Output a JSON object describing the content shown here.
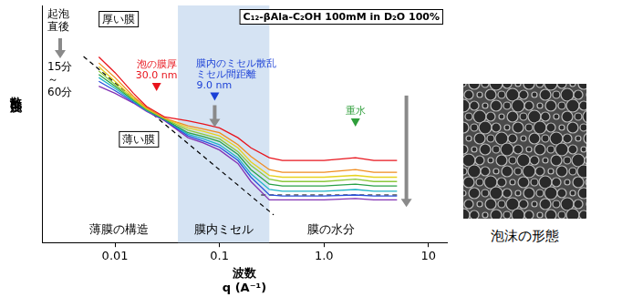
{
  "chart_data": {
    "type": "line",
    "title": "C₁₂-βAla-C₂OH 100mM in D₂O 100%",
    "xlabel": [
      "波数",
      "q (A⁻¹)"
    ],
    "ylabel": "散乱強度",
    "log": true,
    "grid": false,
    "tick_labels": "x",
    "xlim": [
      0.002,
      15
    ],
    "ylim": [
      0.001,
      1000
    ],
    "xticks": [
      0.01,
      0.1,
      {
        "value": 1,
        "label": "1.0"
      },
      10
    ],
    "x": [
      0.007,
      0.01,
      0.015,
      0.02,
      0.03,
      0.05,
      0.07,
      0.1,
      0.15,
      0.2,
      0.3,
      0.4,
      0.6,
      1,
      2,
      3,
      5
    ],
    "series": [
      {
        "color": "#e8141c",
        "values": [
          50,
          20,
          6,
          2.8,
          1.5,
          1.2,
          1.0,
          0.8,
          0.45,
          0.25,
          0.14,
          0.12,
          0.12,
          0.12,
          0.14,
          0.12,
          0.12
        ]
      },
      {
        "color": "#f08c1e",
        "values": [
          35,
          15,
          5,
          2.6,
          1.4,
          0.9,
          0.75,
          0.6,
          0.3,
          0.15,
          0.07,
          0.06,
          0.06,
          0.06,
          0.07,
          0.06,
          0.06
        ]
      },
      {
        "color": "#e6d21e",
        "values": [
          28,
          12,
          4.5,
          2.5,
          1.4,
          0.8,
          0.65,
          0.5,
          0.25,
          0.11,
          0.05,
          0.045,
          0.045,
          0.045,
          0.05,
          0.045,
          0.045
        ]
      },
      {
        "color": "#8cc83c",
        "values": [
          22,
          10,
          4.2,
          2.4,
          1.35,
          0.7,
          0.55,
          0.42,
          0.2,
          0.09,
          0.04,
          0.035,
          0.035,
          0.035,
          0.04,
          0.035,
          0.035
        ]
      },
      {
        "color": "#28a046",
        "values": [
          18,
          9,
          4,
          2.3,
          1.3,
          0.6,
          0.48,
          0.36,
          0.17,
          0.07,
          0.03,
          0.027,
          0.027,
          0.027,
          0.03,
          0.027,
          0.027
        ]
      },
      {
        "color": "#20b4c8",
        "values": [
          15,
          8,
          3.8,
          2.2,
          1.3,
          0.55,
          0.42,
          0.3,
          0.14,
          0.055,
          0.022,
          0.02,
          0.02,
          0.02,
          0.022,
          0.02,
          0.02
        ]
      },
      {
        "color": "#2850dc",
        "values": [
          12,
          7,
          3.6,
          2.2,
          1.25,
          0.5,
          0.37,
          0.26,
          0.12,
          0.045,
          0.016,
          0.015,
          0.015,
          0.015,
          0.016,
          0.015,
          0.015
        ]
      },
      {
        "color": "#8232b4",
        "values": [
          9,
          6,
          3.4,
          2.1,
          1.2,
          0.45,
          0.33,
          0.22,
          0.1,
          0.035,
          0.012,
          0.012,
          0.012,
          0.012,
          0.013,
          0.012,
          0.012
        ]
      },
      {
        "color": "#000000",
        "line_style": "dashed",
        "x": [
          0.005,
          0.33
        ],
        "values": [
          51,
          0.005
        ]
      },
      {
        "color": "#000000",
        "line_style": "dashed",
        "x": [
          0.25,
          5
        ],
        "values": [
          0.016,
          0.016
        ]
      }
    ],
    "band": [
      0.04,
      0.3
    ],
    "region_labels": [
      "薄膜の構造",
      "膜内ミセル",
      "膜の水分"
    ],
    "markers": [
      {
        "x": 0.025,
        "text": [
          "泡の膜厚",
          "30.0 nm"
        ],
        "color": "#e8141c"
      },
      {
        "x": 0.09,
        "text": [
          "膜内のミセル散乱",
          "ミセル間距離",
          "9.0 nm"
        ],
        "color": "#1a3fd6"
      },
      {
        "x": 2,
        "text": [
          "重水"
        ],
        "color": "#2e9e3a"
      }
    ],
    "annotations": [
      [
        "起泡",
        "直後"
      ],
      [
        "15分",
        "～",
        "60分"
      ],
      "厚い膜",
      "薄い膜"
    ],
    "image_caption": "泡沫の形態"
  }
}
